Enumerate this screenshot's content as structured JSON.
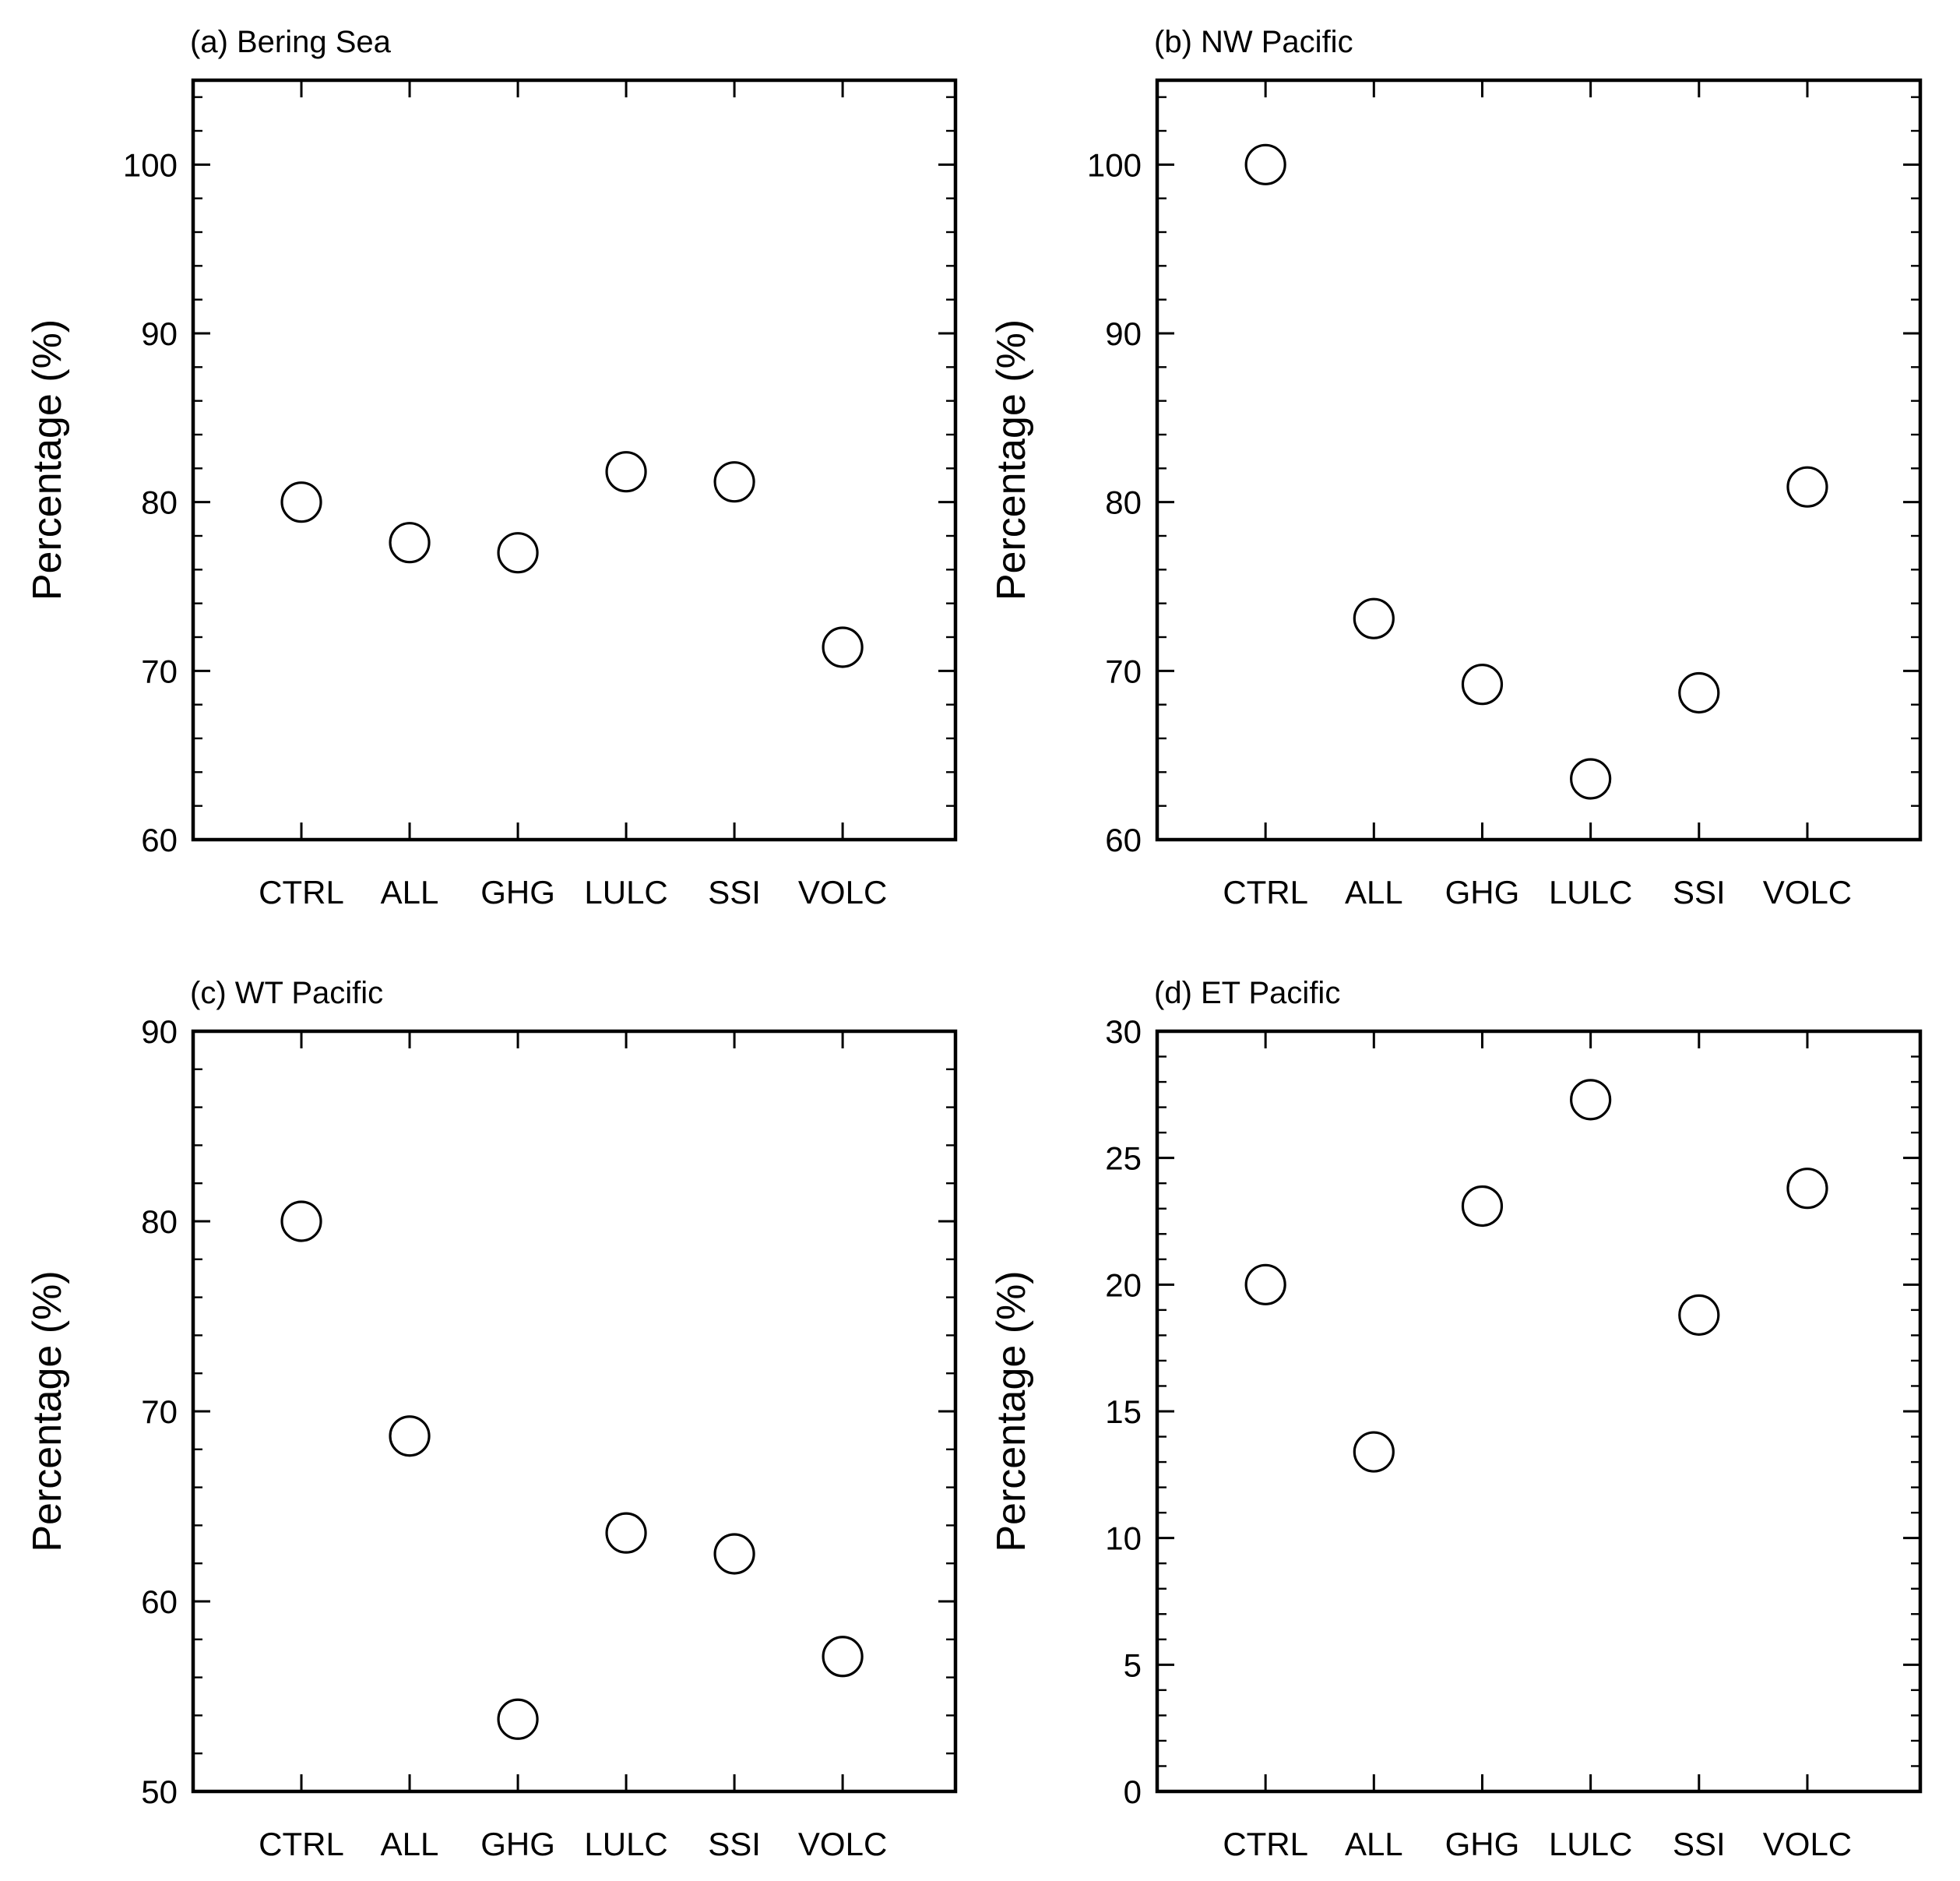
{
  "chart_data": [
    {
      "type": "scatter",
      "title": "(a) Bering Sea",
      "ylabel": "Percentage (%)",
      "xlabel": "",
      "categories": [
        "CTRL",
        "ALL",
        "GHG",
        "LULC",
        "SSI",
        "VOLC"
      ],
      "values": [
        80.0,
        77.6,
        77.0,
        81.8,
        81.2,
        71.4
      ],
      "ylim": [
        60,
        105
      ],
      "yticks": [
        60,
        70,
        80,
        90,
        100
      ],
      "yticklabels": [
        "60",
        "70",
        "80",
        "90",
        "100"
      ],
      "minor_step": 2,
      "grid": false,
      "marker": "open-circle"
    },
    {
      "type": "scatter",
      "title": "(b) NW Pacific",
      "ylabel": "Percentage (%)",
      "xlabel": "",
      "categories": [
        "CTRL",
        "ALL",
        "GHG",
        "LULC",
        "SSI",
        "VOLC"
      ],
      "values": [
        100.0,
        73.1,
        69.2,
        63.6,
        68.7,
        80.9
      ],
      "ylim": [
        60,
        105
      ],
      "yticks": [
        60,
        70,
        80,
        90,
        100
      ],
      "yticklabels": [
        "60",
        "70",
        "80",
        "90",
        "100"
      ],
      "minor_step": 2,
      "grid": false,
      "marker": "open-circle"
    },
    {
      "type": "scatter",
      "title": "(c) WT Pacific",
      "ylabel": "Percentage (%)",
      "xlabel": "",
      "categories": [
        "CTRL",
        "ALL",
        "GHG",
        "LULC",
        "SSI",
        "VOLC"
      ],
      "values": [
        80.0,
        68.7,
        53.8,
        63.6,
        62.5,
        57.1
      ],
      "ylim": [
        50,
        90
      ],
      "yticks": [
        50,
        60,
        70,
        80,
        90
      ],
      "yticklabels": [
        "50",
        "60",
        "70",
        "80",
        "90"
      ],
      "minor_step": 2,
      "grid": false,
      "marker": "open-circle"
    },
    {
      "type": "scatter",
      "title": "(d) ET Pacific",
      "ylabel": "Percentage (%)",
      "xlabel": "",
      "categories": [
        "CTRL",
        "ALL",
        "GHG",
        "LULC",
        "SSI",
        "VOLC"
      ],
      "values": [
        20.0,
        13.4,
        23.1,
        27.3,
        18.8,
        23.8
      ],
      "ylim": [
        0,
        30
      ],
      "yticks": [
        0,
        5,
        10,
        15,
        20,
        25,
        30
      ],
      "yticklabels": [
        "0",
        "5",
        "10",
        "15",
        "20",
        "25",
        "30"
      ],
      "minor_step": 1,
      "grid": false,
      "marker": "open-circle"
    }
  ]
}
